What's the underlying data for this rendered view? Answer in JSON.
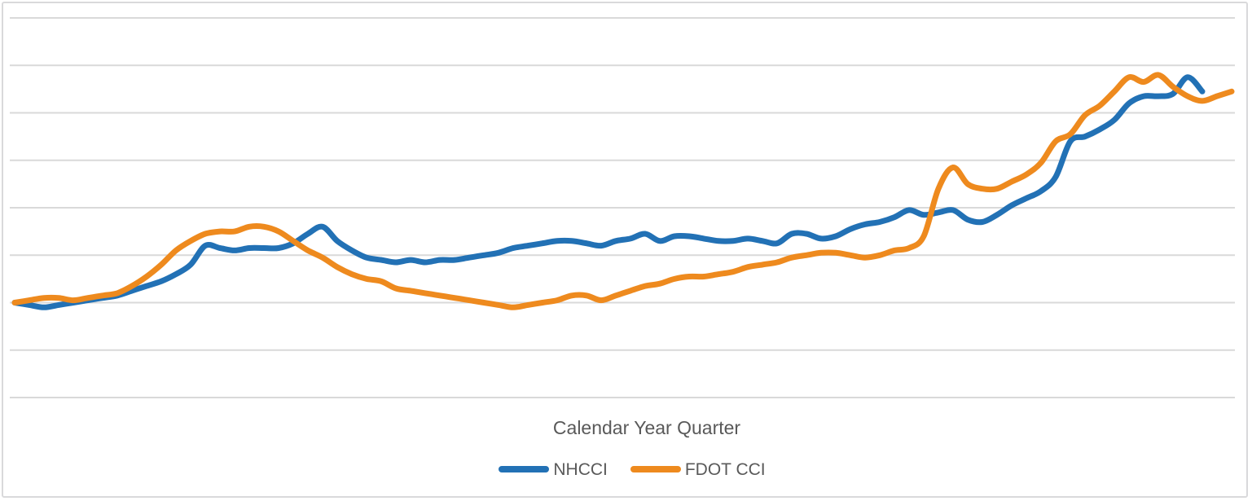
{
  "chart_data": {
    "type": "line",
    "title": "",
    "xlabel": "Calendar Year Quarter",
    "ylabel": "",
    "x_axis": "ordinal quarters (tick labels not shown in image)",
    "x_tick_labels_visible": false,
    "y_tick_labels_visible": false,
    "ylim": [
      0.6,
      2.2
    ],
    "ytick_step": 0.2,
    "baseline_value": 1.0,
    "grid": "horizontal",
    "line_style": "smooth",
    "legend_position": "bottom",
    "series": [
      {
        "name": "NHCCI",
        "color": "#2271B5",
        "values": [
          1.0,
          0.99,
          0.98,
          0.99,
          1.0,
          1.01,
          1.02,
          1.03,
          1.05,
          1.07,
          1.09,
          1.12,
          1.16,
          1.24,
          1.23,
          1.22,
          1.23,
          1.23,
          1.23,
          1.25,
          1.29,
          1.32,
          1.26,
          1.22,
          1.19,
          1.18,
          1.17,
          1.18,
          1.17,
          1.18,
          1.18,
          1.19,
          1.2,
          1.21,
          1.23,
          1.24,
          1.25,
          1.26,
          1.26,
          1.25,
          1.24,
          1.26,
          1.27,
          1.29,
          1.26,
          1.28,
          1.28,
          1.27,
          1.26,
          1.26,
          1.27,
          1.26,
          1.25,
          1.29,
          1.29,
          1.27,
          1.28,
          1.31,
          1.33,
          1.34,
          1.36,
          1.39,
          1.37,
          1.38,
          1.39,
          1.35,
          1.34,
          1.37,
          1.41,
          1.44,
          1.47,
          1.53,
          1.68,
          1.7,
          1.73,
          1.77,
          1.84,
          1.87,
          1.87,
          1.88,
          1.95,
          1.89,
          null,
          null
        ]
      },
      {
        "name": "FDOT CCI",
        "color": "#EE8A1E",
        "values": [
          1.0,
          1.01,
          1.02,
          1.02,
          1.01,
          1.02,
          1.03,
          1.04,
          1.07,
          1.11,
          1.16,
          1.22,
          1.26,
          1.29,
          1.3,
          1.3,
          1.32,
          1.32,
          1.3,
          1.26,
          1.22,
          1.19,
          1.15,
          1.12,
          1.1,
          1.09,
          1.06,
          1.05,
          1.04,
          1.03,
          1.02,
          1.01,
          1.0,
          0.99,
          0.98,
          0.99,
          1.0,
          1.01,
          1.03,
          1.03,
          1.01,
          1.03,
          1.05,
          1.07,
          1.08,
          1.1,
          1.11,
          1.11,
          1.12,
          1.13,
          1.15,
          1.16,
          1.17,
          1.19,
          1.2,
          1.21,
          1.21,
          1.2,
          1.19,
          1.2,
          1.22,
          1.23,
          1.28,
          1.48,
          1.57,
          1.5,
          1.48,
          1.48,
          1.51,
          1.54,
          1.59,
          1.68,
          1.71,
          1.79,
          1.83,
          1.89,
          1.95,
          1.93,
          1.96,
          1.91,
          1.87,
          1.85,
          1.87,
          1.89
        ]
      }
    ]
  },
  "styles": {
    "background": "#FFFFFF",
    "border_color": "#D9D9DB",
    "grid_color": "#D9D9D9",
    "text_color": "#595959"
  }
}
